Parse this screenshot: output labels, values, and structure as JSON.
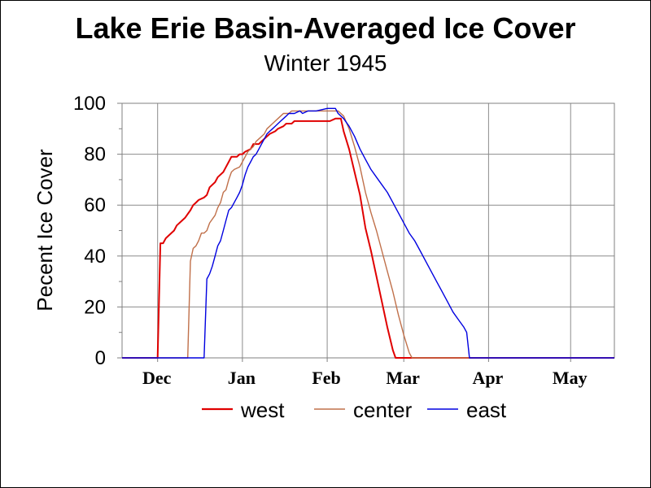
{
  "chart_data": {
    "type": "line",
    "title": "Lake Erie Basin-Averaged Ice Cover",
    "subtitle": "Winter 1945",
    "ylabel": "Pecent Ice Cover",
    "xlabel": "",
    "ylim": [
      0,
      100
    ],
    "yticks": [
      "0",
      "20",
      "40",
      "60",
      "80",
      "100"
    ],
    "month_ticks": [
      "Dec",
      "Jan",
      "Feb",
      "Mar",
      "Apr",
      "May"
    ],
    "grid": true,
    "legend_position": "bottom",
    "series": [
      {
        "name": "west",
        "color": "#e00000",
        "points": [
          [
            -13,
            0
          ],
          [
            0,
            0
          ],
          [
            1,
            45
          ],
          [
            2,
            45
          ],
          [
            3,
            47
          ],
          [
            5,
            49
          ],
          [
            6,
            50
          ],
          [
            7,
            52
          ],
          [
            9,
            54
          ],
          [
            10,
            55
          ],
          [
            12,
            58
          ],
          [
            13,
            60
          ],
          [
            14,
            61
          ],
          [
            15,
            62
          ],
          [
            17,
            63
          ],
          [
            18,
            64
          ],
          [
            19,
            67
          ],
          [
            21,
            69
          ],
          [
            22,
            71
          ],
          [
            24,
            73
          ],
          [
            25,
            75
          ],
          [
            26,
            77
          ],
          [
            27,
            79
          ],
          [
            29,
            79
          ],
          [
            30,
            80
          ],
          [
            31,
            80
          ],
          [
            32,
            81
          ],
          [
            34,
            82
          ],
          [
            35,
            84
          ],
          [
            37,
            84
          ],
          [
            38,
            85
          ],
          [
            40,
            87
          ],
          [
            41,
            88
          ],
          [
            43,
            89
          ],
          [
            44,
            90
          ],
          [
            46,
            91
          ],
          [
            47,
            92
          ],
          [
            49,
            92
          ],
          [
            50,
            93
          ],
          [
            60,
            93
          ],
          [
            63,
            93
          ],
          [
            65,
            94
          ],
          [
            67,
            94
          ],
          [
            68,
            89
          ],
          [
            70,
            82
          ],
          [
            72,
            73
          ],
          [
            74,
            64
          ],
          [
            76,
            51
          ],
          [
            78,
            42
          ],
          [
            80,
            32
          ],
          [
            82,
            22
          ],
          [
            84,
            12
          ],
          [
            86,
            3
          ],
          [
            87,
            0
          ],
          [
            167,
            0
          ]
        ]
      },
      {
        "name": "center",
        "color": "#c0704a",
        "points": [
          [
            -13,
            0
          ],
          [
            11,
            0
          ],
          [
            12,
            38
          ],
          [
            13,
            43
          ],
          [
            14,
            44
          ],
          [
            15,
            46
          ],
          [
            16,
            49
          ],
          [
            17,
            49
          ],
          [
            18,
            50
          ],
          [
            19,
            53
          ],
          [
            21,
            56
          ],
          [
            22,
            59
          ],
          [
            23,
            61
          ],
          [
            24,
            65
          ],
          [
            25,
            66
          ],
          [
            26,
            70
          ],
          [
            27,
            73
          ],
          [
            28,
            74
          ],
          [
            30,
            75
          ],
          [
            31,
            77
          ],
          [
            32,
            79
          ],
          [
            33,
            81
          ],
          [
            35,
            83
          ],
          [
            36,
            85
          ],
          [
            37,
            86
          ],
          [
            39,
            88
          ],
          [
            40,
            90
          ],
          [
            42,
            92
          ],
          [
            43,
            93
          ],
          [
            45,
            95
          ],
          [
            46,
            96
          ],
          [
            48,
            96
          ],
          [
            49,
            97
          ],
          [
            55,
            97
          ],
          [
            58,
            97
          ],
          [
            62,
            97
          ],
          [
            64,
            97
          ],
          [
            66,
            97
          ],
          [
            68,
            95
          ],
          [
            70,
            90
          ],
          [
            72,
            83
          ],
          [
            74,
            75
          ],
          [
            76,
            65
          ],
          [
            78,
            57
          ],
          [
            80,
            50
          ],
          [
            82,
            42
          ],
          [
            84,
            34
          ],
          [
            86,
            26
          ],
          [
            88,
            17
          ],
          [
            90,
            9
          ],
          [
            92,
            2
          ],
          [
            93,
            0
          ],
          [
            167,
            0
          ]
        ]
      },
      {
        "name": "east",
        "color": "#0000e0",
        "points": [
          [
            -13,
            0
          ],
          [
            17,
            0
          ],
          [
            18,
            31
          ],
          [
            19,
            33
          ],
          [
            20,
            36
          ],
          [
            21,
            40
          ],
          [
            22,
            44
          ],
          [
            23,
            46
          ],
          [
            24,
            50
          ],
          [
            25,
            54
          ],
          [
            26,
            58
          ],
          [
            27,
            59
          ],
          [
            28,
            61
          ],
          [
            29,
            63
          ],
          [
            30,
            65
          ],
          [
            31,
            68
          ],
          [
            32,
            72
          ],
          [
            33,
            75
          ],
          [
            34,
            77
          ],
          [
            35,
            79
          ],
          [
            36,
            80
          ],
          [
            37,
            82
          ],
          [
            38,
            84
          ],
          [
            39,
            86
          ],
          [
            40,
            88
          ],
          [
            41,
            89
          ],
          [
            42,
            90
          ],
          [
            43,
            91
          ],
          [
            44,
            92
          ],
          [
            45,
            93
          ],
          [
            46,
            94
          ],
          [
            47,
            95
          ],
          [
            48,
            96
          ],
          [
            50,
            96
          ],
          [
            52,
            97
          ],
          [
            53,
            96
          ],
          [
            55,
            97
          ],
          [
            58,
            97
          ],
          [
            62,
            98
          ],
          [
            64,
            98
          ],
          [
            65,
            98
          ],
          [
            66,
            96
          ],
          [
            68,
            94
          ],
          [
            70,
            91
          ],
          [
            72,
            87
          ],
          [
            74,
            82
          ],
          [
            76,
            78
          ],
          [
            78,
            74
          ],
          [
            80,
            71
          ],
          [
            82,
            68
          ],
          [
            84,
            65
          ],
          [
            86,
            61
          ],
          [
            88,
            57
          ],
          [
            90,
            53
          ],
          [
            92,
            49
          ],
          [
            94,
            46
          ],
          [
            96,
            42
          ],
          [
            98,
            38
          ],
          [
            100,
            34
          ],
          [
            102,
            30
          ],
          [
            104,
            26
          ],
          [
            106,
            22
          ],
          [
            108,
            18
          ],
          [
            110,
            15
          ],
          [
            112,
            12
          ],
          [
            113,
            10
          ],
          [
            114,
            0
          ],
          [
            167,
            0
          ]
        ]
      }
    ]
  }
}
